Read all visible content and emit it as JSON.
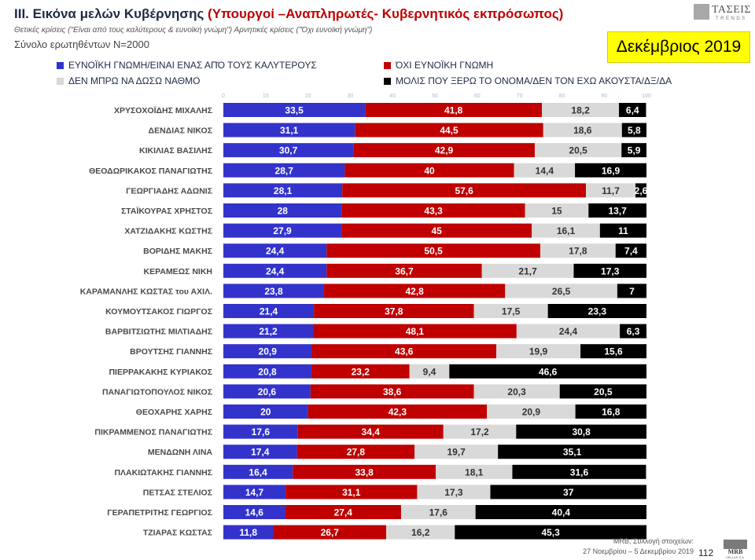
{
  "header": {
    "title_main": "III. Εικόνα μελών Κυβέρνησης",
    "title_sub": "(Υπουργοί –Αναπληρωτές- Κυβερνητικός εκπρόσωπος)",
    "subtitle": "Θετικές κρίσεις (\"Είναι από τους καλύτερους & ευνοϊκή γνώμη\")  Αρνητικές κρίσεις (\"Όχι ευνοϊκή γνώμη\")",
    "sample": "Σύνολο ερωτηθέντων N=2000",
    "month": "Δεκέμβριος 2019"
  },
  "logo": {
    "name": "ΤΑΣΕΙΣ",
    "tagline": "TRENDS"
  },
  "footer": {
    "source": "MRB, Συλλογή στοιχείων:",
    "dates": "27 Νοεμβρίου – 5 Δεκεμβρίου 2019",
    "page": "112",
    "mrb": "MRB",
    "mrb_sub": "HELLAS S.A."
  },
  "colors": {
    "favorable": "#3333cc",
    "unfavorable": "#c00000",
    "dontknow": "#d9d9d9",
    "dontknowperson": "#000000"
  },
  "chart_data": {
    "type": "bar",
    "orientation": "horizontal",
    "stacked": true,
    "xlim": [
      0,
      100
    ],
    "xticks": [
      0,
      10,
      20,
      30,
      40,
      50,
      60,
      70,
      80,
      90,
      100
    ],
    "legend_position": "top",
    "categories": [
      "ΧΡΥΣΟΧΟΪΔΗΣ ΜΙΧΑΛΗΣ",
      "ΔΕΝΔΙΑΣ ΝΙΚΟΣ",
      "ΚΙΚΙΛΙΑΣ ΒΑΣΙΛΗΣ",
      "ΘΕΟΔΩΡΙΚΑΚΟΣ ΠΑΝΑΓΙΩΤΗΣ",
      "ΓΕΩΡΓΙΑΔΗΣ ΑΔΩΝΙΣ",
      "ΣΤΑΪΚΟΥΡΑΣ ΧΡΗΣΤΟΣ",
      "ΧΑΤΖΙΔΑΚΗΣ ΚΩΣΤΗΣ",
      "ΒΟΡΙΔΗΣ ΜΑΚΗΣ",
      "ΚΕΡΑΜΕΩΣ ΝΙΚΗ",
      "ΚΑΡΑΜΑΝΛΗΣ ΚΩΣΤΑΣ του ΑΧΙΛ.",
      "ΚΟΥΜΟΥΤΣΑΚΟΣ ΓΙΩΡΓΟΣ",
      "ΒΑΡΒΙΤΣΙΩΤΗΣ ΜΙΛΤΙΑΔΗΣ",
      "ΒΡΟΥΤΣΗΣ ΓΙΑΝΝΗΣ",
      "ΠΙΕΡΡΑΚΑΚΗΣ ΚΥΡΙΑΚΟΣ",
      "ΠΑΝΑΓΙΩΤΟΠΟΥΛΟΣ ΝΙΚΟΣ",
      "ΘΕΟΧΑΡΗΣ ΧΑΡΗΣ",
      "ΠΙΚΡΑΜΜΕΝΟΣ ΠΑΝΑΓΙΩΤΗΣ",
      "ΜΕΝΔΩΝΗ ΛΙΝΑ",
      "ΠΛΑΚΙΩΤΑΚΗΣ ΓΙΑΝΝΗΣ",
      "ΠΕΤΣΑΣ ΣΤΕΛΙΟΣ",
      "ΓΕΡΑΠΕΤΡΙΤΗΣ ΓΕΩΡΓΙΟΣ",
      "ΤΖΙΑΡΑΣ ΚΩΣΤΑΣ"
    ],
    "series": [
      {
        "name": "ΕΥΝΟΪΚΗ ΓΝΩΜΗ/ΕΙΝΑΙ ΕΝΑΣ ΑΠΌ ΤΟΥΣ ΚΑΛΥΤΕΡΟΥΣ",
        "color": "#3333cc",
        "values": [
          33.5,
          31.1,
          30.7,
          28.7,
          28.1,
          28,
          27.9,
          24.4,
          24.4,
          23.8,
          21.4,
          21.2,
          20.9,
          20.8,
          20.6,
          20,
          17.6,
          17.4,
          16.4,
          14.7,
          14.6,
          11.8
        ]
      },
      {
        "name": "ΌΧΙ ΕΥΝΟΪΚΗ ΓΝΩΜΗ",
        "color": "#c00000",
        "values": [
          41.8,
          44.5,
          42.9,
          40,
          57.6,
          43.3,
          45,
          50.5,
          36.7,
          42.8,
          37.8,
          48.1,
          43.6,
          23.2,
          38.6,
          42.3,
          34.4,
          27.8,
          33.8,
          31.1,
          27.4,
          26.7
        ]
      },
      {
        "name": "ΔΕΝ ΜΠΡΩ ΝΑ ΔΩΣΩ ΝΑΘΜΟ",
        "color": "#d9d9d9",
        "values": [
          18.2,
          18.6,
          20.5,
          14.4,
          11.7,
          15,
          16.1,
          17.8,
          21.7,
          26.5,
          17.5,
          24.4,
          19.9,
          9.4,
          20.3,
          20.9,
          17.2,
          19.7,
          18.1,
          17.3,
          17.6,
          16.2
        ]
      },
      {
        "name": "ΜΟΛΙΣ ΠΟΥ ΞΕΡΩ ΤΟ ΟΝΟΜΑ/ΔΕΝ ΤΟΝ ΕΧΩ ΑΚΟΥΣΤΑ/ΔΞ/ΔΑ",
        "color": "#000000",
        "values": [
          6.4,
          5.8,
          5.9,
          16.9,
          2.6,
          13.7,
          11,
          7.4,
          17.3,
          7,
          23.3,
          6.3,
          15.6,
          46.6,
          20.5,
          16.8,
          30.8,
          35.1,
          31.6,
          37,
          40.4,
          45.3
        ]
      }
    ]
  }
}
